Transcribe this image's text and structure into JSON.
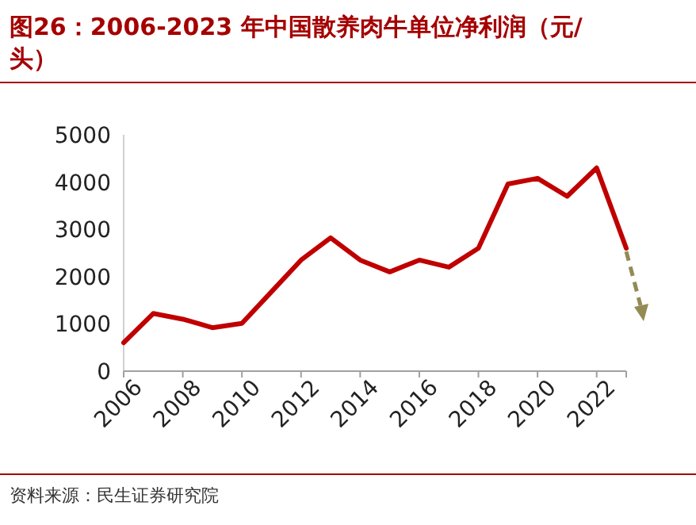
{
  "chart_data": {
    "type": "line",
    "title": "图26：2006-2023 年中国散养肉牛单位净利润（元/头）",
    "annotations": [
      "资料来源：民生证券研究院"
    ],
    "x": [
      2006,
      2007,
      2008,
      2009,
      2010,
      2011,
      2012,
      2013,
      2014,
      2015,
      2016,
      2017,
      2018,
      2019,
      2020,
      2021,
      2022,
      2023
    ],
    "series": [
      {
        "color": "#c00000",
        "values": [
          600,
          1220,
          1100,
          920,
          1010,
          1680,
          2350,
          2820,
          2350,
          2100,
          2350,
          2200,
          2600,
          3960,
          4080,
          3700,
          4300,
          2600
        ]
      }
    ],
    "xlim": [
      2006,
      2023
    ],
    "xticks": [
      2006,
      2008,
      2010,
      2012,
      2014,
      2016,
      2018,
      2020,
      2022,
      {
        "value": 2023,
        "label": null
      }
    ],
    "ylim": [
      0,
      5000
    ],
    "yticks": [
      0,
      1000,
      2000,
      3000,
      4000,
      5000
    ],
    "grid": false,
    "marker": "none",
    "line_style": "solid"
  }
}
